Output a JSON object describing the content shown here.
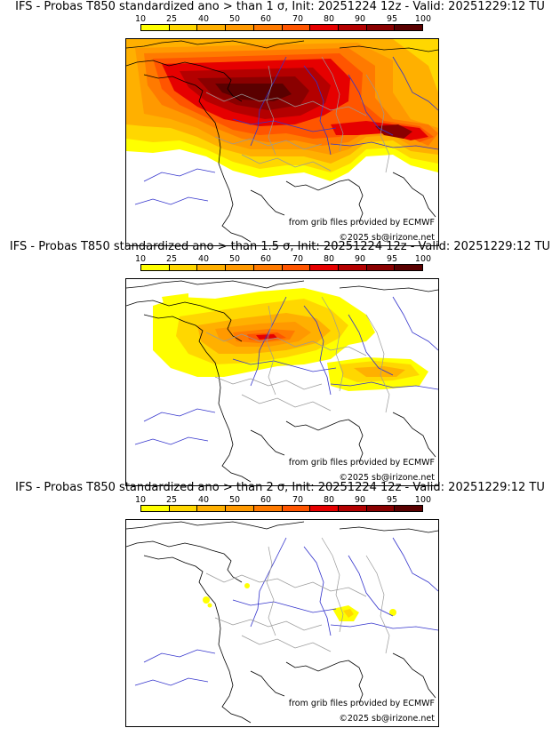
{
  "colorbar": {
    "labels": [
      "10",
      "25",
      "40",
      "50",
      "60",
      "70",
      "80",
      "90",
      "95",
      "100"
    ],
    "colors": [
      "#ffff00",
      "#ffd700",
      "#ffb000",
      "#ff9900",
      "#ff7a00",
      "#ff5500",
      "#e60000",
      "#b40000",
      "#8a0000",
      "#5a0000"
    ]
  },
  "panels": [
    {
      "title": "IFS - Probas T850  standardized ano > than 1 σ, Init: 20251224 12z - Valid: 20251229:12 TU",
      "sigma": 1,
      "credit_source": "from grib files provided by ECMWF",
      "credit_copyright": "©2025 sb@irizone.net"
    },
    {
      "title": "IFS - Probas T850  standardized ano > than 1.5 σ, Init: 20251224 12z - Valid: 20251229:12 TU",
      "sigma": 1.5,
      "credit_source": "from grib files provided by ECMWF",
      "credit_copyright": "©2025 sb@irizone.net"
    },
    {
      "title": "IFS - Probas T850  standardized ano > than 2 σ, Init: 20251224 12z - Valid: 20251229:12 TU",
      "sigma": 2,
      "credit_source": "from grib files provided by ECMWF",
      "credit_copyright": "©2025 sb@irizone.net"
    }
  ]
}
